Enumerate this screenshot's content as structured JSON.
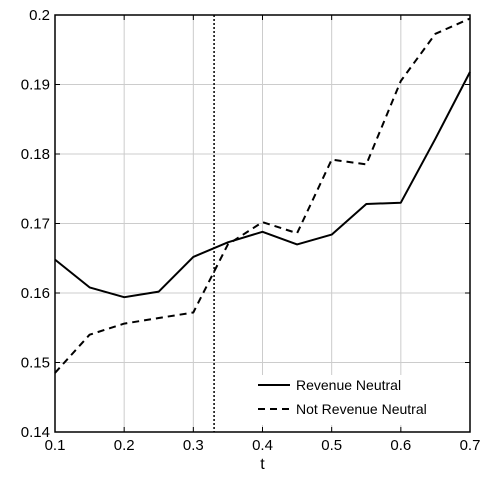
{
  "chart_data": {
    "type": "line",
    "title": "",
    "xlabel": "t",
    "ylabel": "",
    "xlim": [
      0.1,
      0.7
    ],
    "ylim": [
      0.14,
      0.2
    ],
    "xticks": [
      "0.1",
      "0.2",
      "0.3",
      "0.4",
      "0.5",
      "0.6",
      "0.7"
    ],
    "yticks": [
      "0.14",
      "0.15",
      "0.16",
      "0.17",
      "0.18",
      "0.19",
      "0.2"
    ],
    "grid": true,
    "legend_position": "bottom-right",
    "vline_x": 0.33,
    "series": [
      {
        "name": "Revenue Neutral",
        "style": "solid",
        "color": "#000000",
        "x": [
          0.1,
          0.15,
          0.2,
          0.25,
          0.3,
          0.35,
          0.4,
          0.45,
          0.5,
          0.55,
          0.6,
          0.65,
          0.7
        ],
        "y": [
          0.1648,
          0.1608,
          0.1594,
          0.1602,
          0.1652,
          0.1673,
          0.1688,
          0.167,
          0.1684,
          0.1728,
          0.173,
          0.1822,
          0.1918
        ]
      },
      {
        "name": "Not Revenue Neutral",
        "style": "dashed",
        "color": "#000000",
        "x": [
          0.1,
          0.15,
          0.2,
          0.25,
          0.3,
          0.35,
          0.4,
          0.45,
          0.5,
          0.55,
          0.6,
          0.65,
          0.7
        ],
        "y": [
          0.1485,
          0.154,
          0.1556,
          0.1564,
          0.1572,
          0.167,
          0.1702,
          0.1686,
          0.1792,
          0.1785,
          0.1905,
          0.1973,
          0.1995
        ]
      }
    ]
  }
}
